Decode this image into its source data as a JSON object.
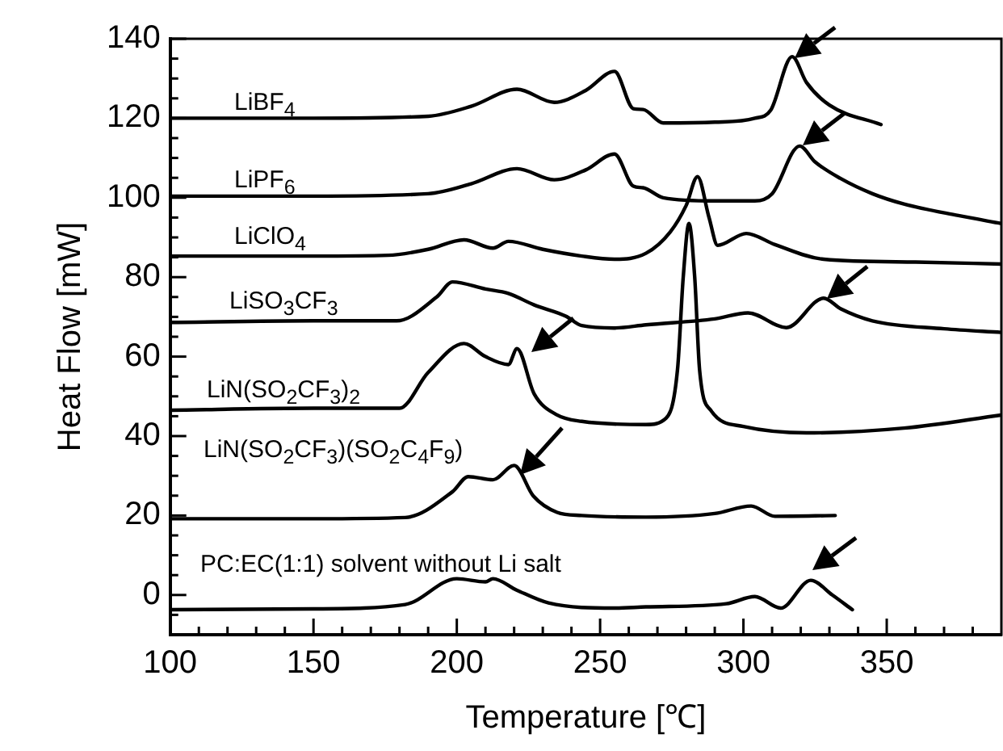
{
  "chart_data": {
    "type": "line",
    "xlabel": "Temperature [℃]",
    "ylabel": "Heat Flow [mW]",
    "xlim": [
      100,
      390
    ],
    "ylim": [
      -10,
      140
    ],
    "xticks": [
      100,
      {
        "value": 110,
        "label": null
      },
      {
        "value": 120,
        "label": null
      },
      {
        "value": 130,
        "label": null
      },
      {
        "value": 140,
        "label": null
      },
      150,
      {
        "value": 160,
        "label": null
      },
      {
        "value": 170,
        "label": null
      },
      {
        "value": 180,
        "label": null
      },
      {
        "value": 190,
        "label": null
      },
      200,
      {
        "value": 210,
        "label": null
      },
      {
        "value": 220,
        "label": null
      },
      {
        "value": 230,
        "label": null
      },
      {
        "value": 240,
        "label": null
      },
      250,
      {
        "value": 260,
        "label": null
      },
      {
        "value": 270,
        "label": null
      },
      {
        "value": 280,
        "label": null
      },
      {
        "value": 290,
        "label": null
      },
      300,
      {
        "value": 310,
        "label": null
      },
      {
        "value": 320,
        "label": null
      },
      {
        "value": 330,
        "label": null
      },
      {
        "value": 340,
        "label": null
      },
      350,
      {
        "value": 360,
        "label": null
      },
      {
        "value": 370,
        "label": null
      },
      {
        "value": 380,
        "label": null
      }
    ],
    "yticks": [
      {
        "value": -5,
        "label": null
      },
      0,
      {
        "value": 5,
        "label": null
      },
      {
        "value": 10,
        "label": null
      },
      {
        "value": 15,
        "label": null
      },
      20,
      {
        "value": 25,
        "label": null
      },
      {
        "value": 30,
        "label": null
      },
      {
        "value": 35,
        "label": null
      },
      40,
      {
        "value": 45,
        "label": null
      },
      {
        "value": 50,
        "label": null
      },
      {
        "value": 55,
        "label": null
      },
      60,
      {
        "value": 65,
        "label": null
      },
      {
        "value": 70,
        "label": null
      },
      {
        "value": 75,
        "label": null
      },
      80,
      {
        "value": 85,
        "label": null
      },
      {
        "value": 90,
        "label": null
      },
      {
        "value": 95,
        "label": null
      },
      100,
      {
        "value": 105,
        "label": null
      },
      {
        "value": 110,
        "label": null
      },
      {
        "value": 115,
        "label": null
      },
      120,
      {
        "value": 125,
        "label": null
      },
      {
        "value": 130,
        "label": null
      },
      {
        "value": 135,
        "label": null
      },
      140
    ],
    "grid": false,
    "legend": false,
    "marker": "none",
    "line_style": "solid",
    "series": [
      {
        "name": "LiBF$_{4}$",
        "color": "#000000",
        "x": [
          100,
          150,
          190,
          205,
          221,
          234,
          245,
          255,
          261.6,
          265,
          272,
          290,
          304,
          309.5,
          317,
          322,
          330,
          348
        ],
        "values": [
          120,
          120,
          120.5,
          123,
          127.3,
          124,
          127,
          131.8,
          122.4,
          122.2,
          118.8,
          119,
          120,
          122,
          135.5,
          129,
          123.3,
          118.4
        ]
      },
      {
        "name": "LiPF$_{6}$",
        "color": "#000000",
        "x": [
          100,
          150,
          190,
          205,
          221,
          234,
          245,
          255,
          261.6,
          265,
          272,
          290,
          304,
          310,
          319.6,
          325,
          333.7,
          345,
          356,
          375,
          390
        ],
        "values": [
          100.4,
          100.4,
          101,
          103.5,
          107.3,
          104.5,
          107,
          111,
          102.9,
          102.5,
          100,
          99.2,
          99.2,
          101,
          113,
          109,
          104.9,
          101,
          98.4,
          95.5,
          93.5
        ]
      },
      {
        "name": "LiClO$_{4}$",
        "color": "#000000",
        "x": [
          100,
          150,
          176,
          190,
          202.5,
          212.6,
          218,
          230,
          243.6,
          255,
          266,
          274.5,
          280,
          284,
          288,
          291,
          301,
          311,
          328,
          360,
          390
        ],
        "values": [
          85.3,
          85.3,
          85.5,
          87,
          89.4,
          87.3,
          89,
          87,
          85.3,
          84.5,
          86,
          91.4,
          98,
          105.3,
          95,
          88,
          91,
          88.2,
          84.5,
          83.8,
          83.3
        ]
      },
      {
        "name": "LiSO$_{3}$CF$_{3}$",
        "color": "#000000",
        "x": [
          100,
          150,
          179,
          193,
          198.5,
          210,
          218,
          227,
          238,
          243.6,
          255,
          266,
          290,
          301.6,
          315,
          328,
          334,
          345,
          370,
          390
        ],
        "values": [
          68.6,
          69,
          69,
          75,
          78.8,
          77,
          75.9,
          73,
          70.2,
          67.8,
          67.2,
          68,
          69.5,
          71,
          67.3,
          74.7,
          72,
          69,
          67,
          66.1
        ]
      },
      {
        "name": "LiN(SO$_{2}$CF$_{3}$)$_{2}$",
        "color": "#000000",
        "x": [
          100,
          150,
          180,
          190,
          202.5,
          210,
          218,
          221,
          227,
          235,
          243.6,
          266,
          273,
          277,
          279,
          281,
          283,
          284.7,
          288.6,
          300,
          322,
          356,
          390
        ],
        "values": [
          46.5,
          47,
          47,
          56,
          63.3,
          60,
          58,
          62,
          50.6,
          45.3,
          43.7,
          42.9,
          44.5,
          56.7,
          80,
          93.5,
          80,
          56.7,
          46.5,
          42.4,
          40.8,
          42,
          45.3
        ]
      },
      {
        "name": "LiN(SO$_{2}$CF$_{3}$)(SO$_{2}$C$_{4}$F$_{9}$)",
        "color": "#000000",
        "x": [
          100,
          150,
          182,
          198.5,
          204,
          212.6,
          220,
          226.7,
          235,
          243.6,
          266,
          290,
          302.7,
          311,
          332
        ],
        "values": [
          19.2,
          19.2,
          19.5,
          26,
          29.8,
          29,
          32.6,
          24.9,
          20.8,
          20,
          19.6,
          20.5,
          22.4,
          19.8,
          20
        ]
      },
      {
        "name": "PC:EC(1:1) solvent without Li salt",
        "color": "#000000",
        "x": [
          100,
          150,
          182,
          200,
          210,
          212.6,
          221,
          232,
          255,
          266,
          294,
          304,
          313,
          323.5,
          331,
          338
        ],
        "values": [
          -3.7,
          -3.5,
          -2.4,
          4.1,
          3.3,
          4.1,
          1.2,
          -2,
          -3.3,
          -3,
          -2.2,
          -0.4,
          -3.3,
          3.7,
          0,
          -3.7
        ]
      }
    ]
  }
}
